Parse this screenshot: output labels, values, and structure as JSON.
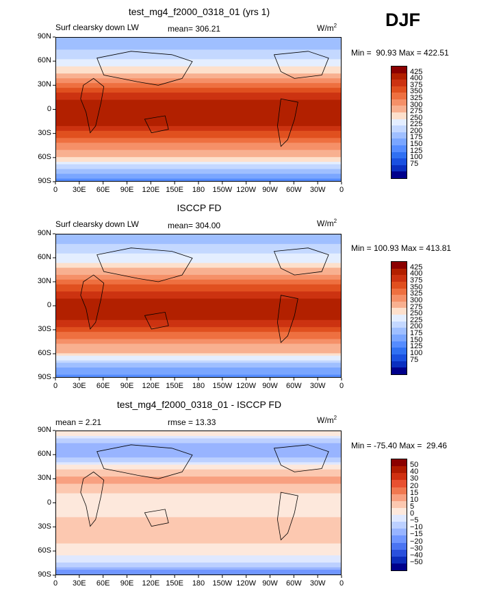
{
  "season": "DJF",
  "charts": [
    {
      "title": "test_mg4_f2000_0318_01 (yrs 1)",
      "left_label": "Surf clearsky down LW",
      "mean_label": "mean= 306.21",
      "units": "W/m",
      "units_sup": "2",
      "minmax": "Min =  90.93 Max = 422.51"
    },
    {
      "title": "ISCCP FD",
      "left_label": "Surf clearsky down LW",
      "mean_label": "mean= 304.00",
      "units": "W/m",
      "units_sup": "2",
      "minmax": "Min = 100.93 Max = 413.81"
    },
    {
      "title": "test_mg4_f2000_0318_01 - ISCCP FD",
      "left_label": "mean =    2.21",
      "mean_label": "rmse =   13.33",
      "units": "W/m",
      "units_sup": "2",
      "minmax": "Min = -75.40 Max =  29.46"
    }
  ],
  "chart_data": [
    {
      "type": "heatmap",
      "title": "test_mg4_f2000_0318_01 (yrs 1)",
      "variable": "Surf clearsky down LW",
      "mean": 306.21,
      "min": 90.93,
      "max": 422.51,
      "units": "W/m2",
      "x_ticks": [
        "0",
        "30E",
        "60E",
        "90E",
        "120E",
        "150E",
        "180",
        "150W",
        "120W",
        "90W",
        "60W",
        "30W",
        "0"
      ],
      "y_ticks": [
        "90N",
        "60N",
        "30N",
        "0",
        "30S",
        "60S",
        "90S"
      ],
      "colorbar_levels": [
        "425",
        "400",
        "375",
        "350",
        "325",
        "300",
        "275",
        "250",
        "225",
        "200",
        "175",
        "150",
        "125",
        "100",
        "75"
      ],
      "zonal_profile": {
        "lat": [
          90,
          75,
          60,
          45,
          30,
          15,
          0,
          -15,
          -30,
          -45,
          -60,
          -75,
          -90
        ],
        "value": [
          150,
          175,
          205,
          250,
          310,
          370,
          400,
          390,
          345,
          290,
          255,
          170,
          110
        ]
      }
    },
    {
      "type": "heatmap",
      "title": "ISCCP FD",
      "variable": "Surf clearsky down LW",
      "mean": 304.0,
      "min": 100.93,
      "max": 413.81,
      "units": "W/m2",
      "x_ticks": [
        "0",
        "30E",
        "60E",
        "90E",
        "120E",
        "150E",
        "180",
        "150W",
        "120W",
        "90W",
        "60W",
        "30W",
        "0"
      ],
      "y_ticks": [
        "90N",
        "60N",
        "30N",
        "0",
        "30S",
        "60S",
        "90S"
      ],
      "colorbar_levels": [
        "425",
        "400",
        "375",
        "350",
        "325",
        "300",
        "275",
        "250",
        "225",
        "200",
        "175",
        "150",
        "125",
        "100",
        "75"
      ],
      "zonal_profile": {
        "lat": [
          90,
          75,
          60,
          45,
          30,
          15,
          0,
          -15,
          -30,
          -45,
          -60,
          -75,
          -90
        ],
        "value": [
          160,
          180,
          210,
          255,
          310,
          365,
          395,
          385,
          340,
          285,
          250,
          165,
          115
        ]
      }
    },
    {
      "type": "heatmap",
      "title": "test_mg4_f2000_0318_01 - ISCCP FD",
      "mean": 2.21,
      "rmse": 13.33,
      "min": -75.4,
      "max": 29.46,
      "units": "W/m2",
      "x_ticks": [
        "0",
        "30E",
        "60E",
        "90E",
        "120E",
        "150E",
        "180",
        "150W",
        "120W",
        "90W",
        "60W",
        "30W",
        "0"
      ],
      "y_ticks": [
        "90N",
        "60N",
        "30N",
        "0",
        "30S",
        "60S",
        "90S"
      ],
      "colorbar_levels": [
        "50",
        "40",
        "30",
        "20",
        "15",
        "10",
        "5",
        "0",
        "−5",
        "−10",
        "−15",
        "−20",
        "−30",
        "−40",
        "−50"
      ],
      "zonal_profile": {
        "lat": [
          90,
          75,
          60,
          45,
          30,
          15,
          0,
          -15,
          -30,
          -45,
          -60,
          -75,
          -90
        ],
        "value": [
          5,
          -10,
          -15,
          3,
          12,
          6,
          2,
          4,
          8,
          6,
          3,
          -5,
          -20
        ]
      }
    }
  ],
  "colors": {
    "warm": [
      "#8b0000",
      "#b22000",
      "#cc3311",
      "#e0501f",
      "#ee7040",
      "#f59068",
      "#f8b090",
      "#fde0cc"
    ],
    "cool": [
      "#e4eeff",
      "#c4d8ff",
      "#9fbfff",
      "#7aa6ff",
      "#558cff",
      "#3070f2",
      "#1a50e0",
      "#0a2fc0",
      "#00008b"
    ],
    "diff_warm": [
      "#8b0000",
      "#b01a00",
      "#d03010",
      "#e85030",
      "#f07850",
      "#f8a080",
      "#fcc8b0",
      "#fde8dc"
    ],
    "diff_cool": [
      "#dfe8ff",
      "#bcd0ff",
      "#98b4ff",
      "#7096ff",
      "#4a74f2",
      "#2a50dc",
      "#0c2cba",
      "#00008b"
    ]
  }
}
